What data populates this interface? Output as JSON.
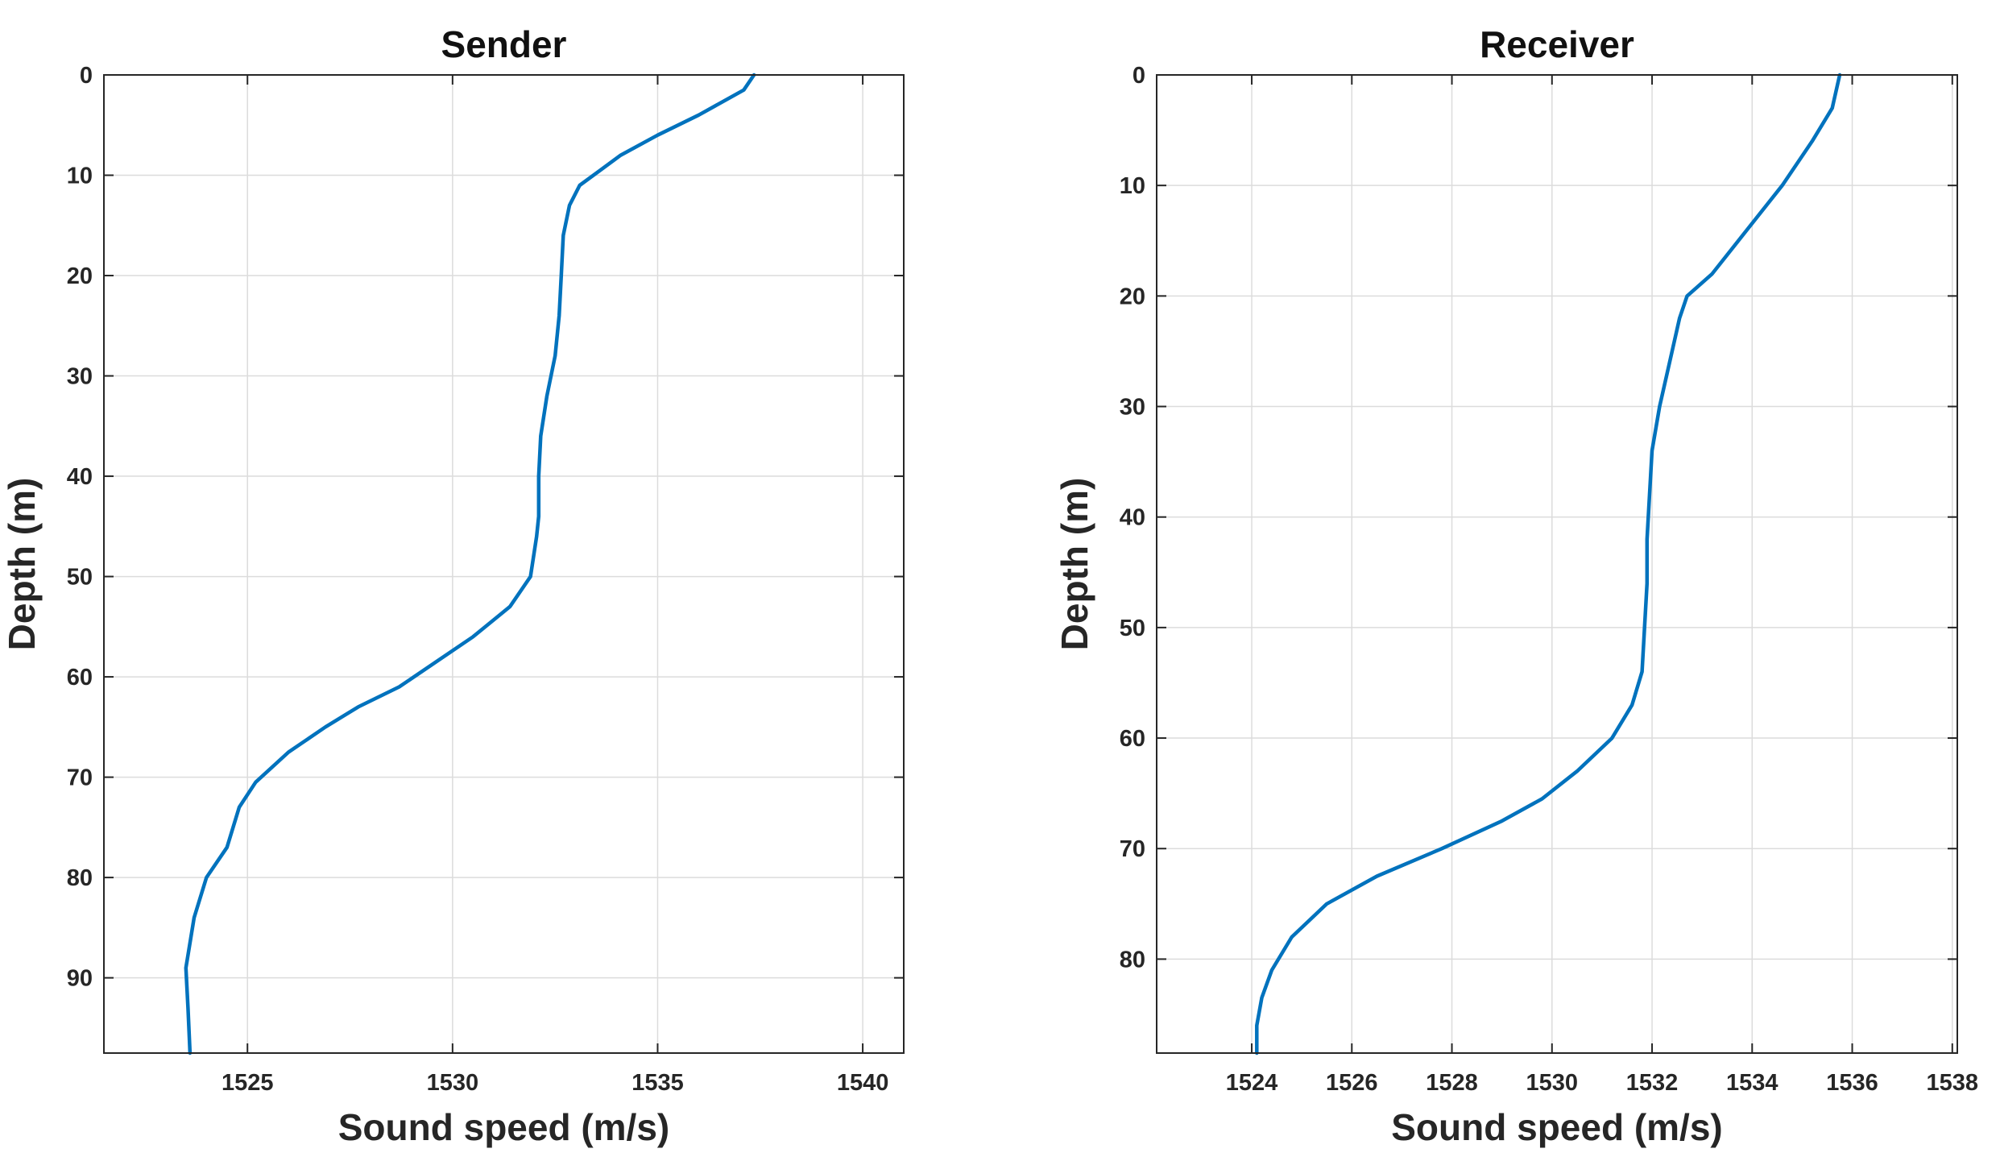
{
  "colors": {
    "line": "#0072BD",
    "axis": "#262626",
    "grid": "#dcdcdc"
  },
  "chart_data": [
    {
      "type": "line",
      "title": "Sender",
      "xlabel": "Sound speed (m/s)",
      "ylabel": "Depth (m)",
      "xlim": [
        1521.5,
        1541
      ],
      "ylim": [
        0,
        97.5
      ],
      "y_reversed": true,
      "grid": true,
      "xticks": [
        1525,
        1530,
        1535,
        1540
      ],
      "yticks": [
        0,
        10,
        20,
        30,
        40,
        50,
        60,
        70,
        80,
        90
      ],
      "series": [
        {
          "x": [
            1537.35,
            1537.1,
            1536.0,
            1535.0,
            1534.1,
            1533.6,
            1533.1,
            1532.85,
            1532.7,
            1532.65,
            1532.6,
            1532.5,
            1532.3,
            1532.15,
            1532.1,
            1532.1,
            1532.05,
            1531.9,
            1531.4,
            1530.5,
            1529.6,
            1528.7,
            1527.7,
            1526.9,
            1526.0,
            1525.2,
            1524.8,
            1524.5,
            1524.0,
            1523.7,
            1523.5,
            1523.55,
            1523.6
          ],
          "y": [
            0,
            1.5,
            4,
            6,
            8,
            9.5,
            11,
            13,
            16,
            20,
            24,
            28,
            32,
            36,
            40,
            44,
            46,
            50,
            53,
            56,
            58.5,
            61,
            63,
            65,
            67.5,
            70.5,
            73,
            77,
            80,
            84,
            89,
            93,
            97.5
          ]
        }
      ]
    },
    {
      "type": "line",
      "title": "Receiver",
      "xlabel": "Sound speed (m/s)",
      "ylabel": "Depth (m)",
      "xlim": [
        1522.1,
        1538.1
      ],
      "ylim": [
        0,
        88.5
      ],
      "y_reversed": true,
      "grid": true,
      "xticks": [
        1524,
        1526,
        1528,
        1530,
        1532,
        1534,
        1536,
        1538
      ],
      "yticks": [
        0,
        10,
        20,
        30,
        40,
        50,
        60,
        70,
        80
      ],
      "series": [
        {
          "x": [
            1535.75,
            1535.7,
            1535.6,
            1535.2,
            1534.6,
            1533.9,
            1533.2,
            1532.7,
            1532.55,
            1532.35,
            1532.15,
            1532.0,
            1531.95,
            1531.9,
            1531.9,
            1531.85,
            1531.8,
            1531.6,
            1531.2,
            1530.5,
            1529.8,
            1529.0,
            1527.8,
            1526.5,
            1525.5,
            1524.8,
            1524.4,
            1524.2,
            1524.1,
            1524.1
          ],
          "y": [
            0,
            1,
            3,
            6,
            10,
            14,
            18,
            20,
            22,
            26,
            30,
            34,
            38,
            42,
            46,
            50,
            54,
            57,
            60,
            63,
            65.5,
            67.5,
            70,
            72.5,
            75,
            78,
            81,
            83.5,
            86,
            88.5
          ]
        }
      ]
    }
  ]
}
